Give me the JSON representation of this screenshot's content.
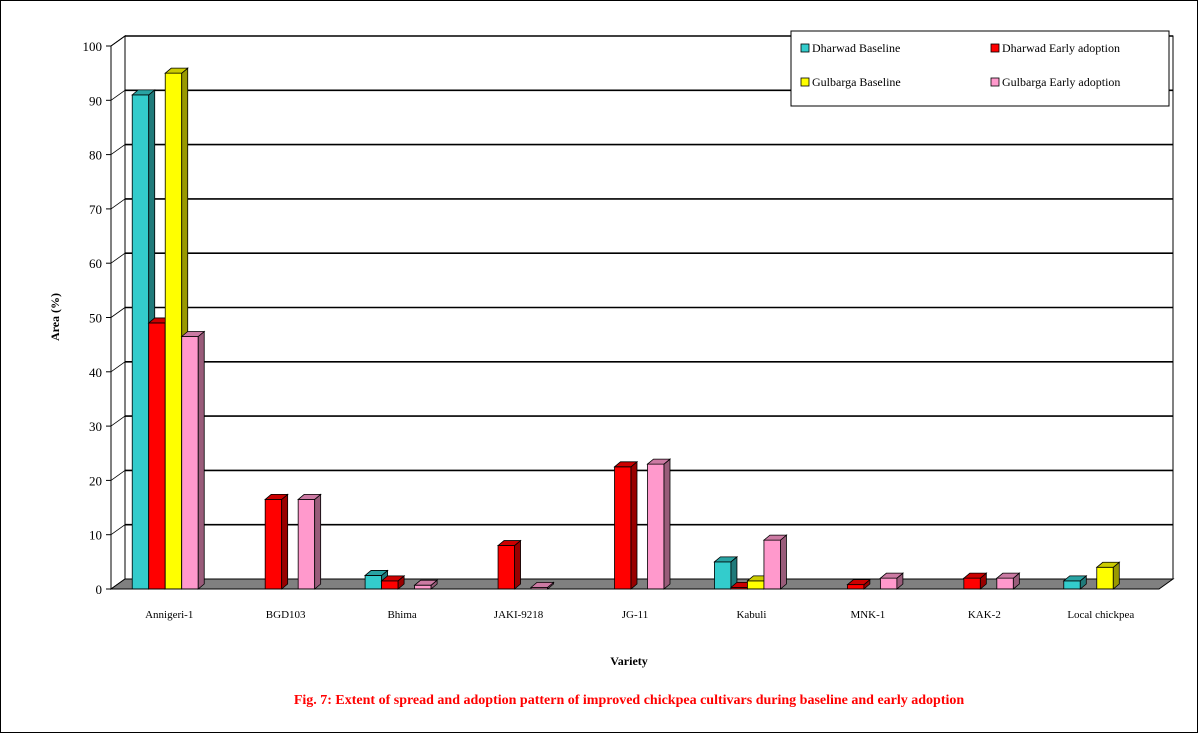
{
  "chart_data": {
    "type": "bar",
    "title": "",
    "caption": "Fig. 7: Extent of spread and adoption pattern of improved chickpea cultivars during baseline and early adoption",
    "xlabel": "Variety",
    "ylabel": "Area (%)",
    "ylim": [
      0,
      100
    ],
    "yticks": [
      0,
      10,
      20,
      30,
      40,
      50,
      60,
      70,
      80,
      90,
      100
    ],
    "grid": true,
    "three_d": true,
    "legend_position": "top-right",
    "categories": [
      "Annigeri-1",
      "BGD103",
      "Bhima",
      "JAKI-9218",
      "JG-11",
      "Kabuli",
      "MNK-1",
      "KAK-2",
      "Local chickpea"
    ],
    "series": [
      {
        "name": "Dharwad Baseline",
        "color": "#33cccc",
        "values": [
          91,
          0,
          2.5,
          0,
          0,
          5,
          0,
          0,
          1.5
        ]
      },
      {
        "name": "Dharwad Early adoption",
        "color": "#ff0000",
        "values": [
          49,
          16.5,
          1.5,
          8,
          22.5,
          0.3,
          0.8,
          2,
          0
        ]
      },
      {
        "name": "Gulbarga Baseline",
        "color": "#ffff00",
        "values": [
          95,
          0,
          0,
          0,
          0,
          1.5,
          0,
          0,
          4
        ]
      },
      {
        "name": "Gulbarga Early adoption",
        "color": "#ff99cc",
        "values": [
          46.5,
          16.5,
          0.7,
          0.3,
          23,
          9,
          2,
          2,
          0
        ]
      }
    ]
  }
}
